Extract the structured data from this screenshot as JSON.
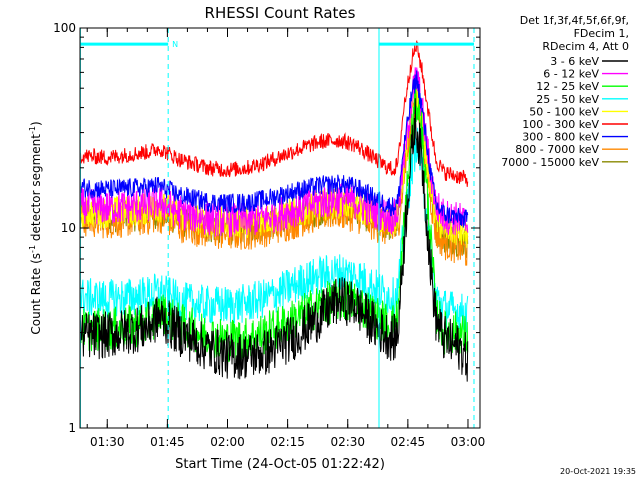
{
  "chart_data": {
    "type": "line",
    "title": "RHESSI Count Rates",
    "xlabel": "Start Time (24-Oct-05 01:22:42)",
    "ylabel_main": "Count Rate (s",
    "ylabel_sup1": "-1",
    "ylabel_mid": " detector segment",
    "ylabel_sup2": "-1",
    "ylabel_end": ")",
    "yscale": "log",
    "ylim": [
      1,
      100
    ],
    "xlim_minutes": [
      83.2,
      183.0
    ],
    "x_ticks": [
      {
        "label": "01:30",
        "minutes": 90
      },
      {
        "label": "01:45",
        "minutes": 105
      },
      {
        "label": "02:00",
        "minutes": 120
      },
      {
        "label": "02:15",
        "minutes": 135
      },
      {
        "label": "02:30",
        "minutes": 150
      },
      {
        "label": "02:45",
        "minutes": 165
      },
      {
        "label": "03:00",
        "minutes": 180
      }
    ],
    "y_ticks": [
      {
        "label": "1",
        "value": 1
      },
      {
        "label": "10",
        "value": 10
      },
      {
        "label": "100",
        "value": 100
      }
    ],
    "legend_header": [
      "Det 1f,3f,4f,5f,6f,9f,",
      "FDecim 1,",
      "RDecim 4, Att 0"
    ],
    "series": [
      {
        "name": "3 - 6 keV",
        "color": "#000000"
      },
      {
        "name": "6 - 12 keV",
        "color": "#ff00ff"
      },
      {
        "name": "12 - 25 keV",
        "color": "#00ff00"
      },
      {
        "name": "25 - 50 keV",
        "color": "#00ffff"
      },
      {
        "name": "50 - 100 keV",
        "color": "#ffff00"
      },
      {
        "name": "100 - 300 keV",
        "color": "#ff0000"
      },
      {
        "name": "300 - 800 keV",
        "color": "#0000ff"
      },
      {
        "name": "800 - 7000 keV",
        "color": "#ff8800"
      },
      {
        "name": "7000 - 15000 keV",
        "color": "#888800"
      }
    ],
    "profiles": [
      [
        [
          83.2,
          2.9
        ],
        [
          90,
          2.9
        ],
        [
          100,
          3.2
        ],
        [
          103,
          3.6
        ],
        [
          108,
          3.0
        ],
        [
          115,
          2.5
        ],
        [
          120,
          2.3
        ],
        [
          125,
          2.3
        ],
        [
          130,
          2.4
        ],
        [
          137,
          2.9
        ],
        [
          143,
          3.6
        ],
        [
          148,
          4.4
        ],
        [
          152,
          4.1
        ],
        [
          157,
          3.2
        ],
        [
          160,
          2.9
        ],
        [
          161.5,
          2.8
        ],
        [
          162.5,
          3.0
        ],
        [
          163.5,
          6
        ],
        [
          165,
          15
        ],
        [
          166.8,
          35
        ],
        [
          168.5,
          22
        ],
        [
          170.5,
          7
        ],
        [
          172,
          3.5
        ],
        [
          174,
          2.8
        ],
        [
          178,
          2.5
        ],
        [
          180,
          2.2
        ]
      ],
      [
        [
          83.2,
          13
        ],
        [
          90,
          12.6
        ],
        [
          100,
          13
        ],
        [
          103,
          13.5
        ],
        [
          108,
          12
        ],
        [
          115,
          11.2
        ],
        [
          120,
          11
        ],
        [
          125,
          11
        ],
        [
          130,
          11.4
        ],
        [
          137,
          12.4
        ],
        [
          143,
          13.5
        ],
        [
          148,
          14
        ],
        [
          152,
          13.5
        ],
        [
          157,
          12
        ],
        [
          160,
          11.5
        ],
        [
          161.5,
          11.3
        ],
        [
          162.5,
          12
        ],
        [
          164,
          22
        ],
        [
          166,
          45
        ],
        [
          167.2,
          58
        ],
        [
          168.5,
          40
        ],
        [
          170.5,
          20
        ],
        [
          172,
          13
        ],
        [
          174,
          11.5
        ],
        [
          178,
          11
        ],
        [
          180,
          10.5
        ]
      ],
      [
        [
          83.2,
          3.1
        ],
        [
          90,
          3.1
        ],
        [
          100,
          3.3
        ],
        [
          103,
          3.8
        ],
        [
          108,
          3.3
        ],
        [
          115,
          2.9
        ],
        [
          120,
          2.75
        ],
        [
          125,
          2.8
        ],
        [
          130,
          3.0
        ],
        [
          137,
          3.5
        ],
        [
          143,
          4.1
        ],
        [
          148,
          4.4
        ],
        [
          152,
          4.3
        ],
        [
          157,
          3.6
        ],
        [
          160,
          3.3
        ],
        [
          161.5,
          3.3
        ],
        [
          162.5,
          3.6
        ],
        [
          164,
          10
        ],
        [
          166,
          30
        ],
        [
          167.2,
          44
        ],
        [
          168.5,
          30
        ],
        [
          170.5,
          10
        ],
        [
          172,
          3.8
        ],
        [
          174,
          3.0
        ],
        [
          178,
          3.0
        ],
        [
          180,
          2.8
        ]
      ],
      [
        [
          83.2,
          4.5
        ],
        [
          90,
          4.4
        ],
        [
          100,
          4.6
        ],
        [
          103,
          4.8
        ],
        [
          108,
          4.3
        ],
        [
          115,
          4.1
        ],
        [
          120,
          4.1
        ],
        [
          125,
          4.2
        ],
        [
          130,
          4.5
        ],
        [
          137,
          5.2
        ],
        [
          143,
          5.8
        ],
        [
          148,
          6.0
        ],
        [
          152,
          5.8
        ],
        [
          157,
          5.0
        ],
        [
          160,
          4.6
        ],
        [
          161.5,
          4.5
        ],
        [
          162.5,
          4.8
        ],
        [
          164,
          10
        ],
        [
          166,
          20
        ],
        [
          167.2,
          27
        ],
        [
          168.5,
          20
        ],
        [
          170.5,
          8
        ],
        [
          172,
          4.5
        ],
        [
          174,
          4.0
        ],
        [
          178,
          3.8
        ],
        [
          180,
          3.7
        ]
      ],
      [
        [
          83.2,
          12
        ],
        [
          90,
          12
        ],
        [
          100,
          12.4
        ],
        [
          103,
          12.8
        ],
        [
          108,
          11.6
        ],
        [
          115,
          10.8
        ],
        [
          120,
          10.6
        ],
        [
          125,
          10.7
        ],
        [
          130,
          11.1
        ],
        [
          137,
          12
        ],
        [
          143,
          13
        ],
        [
          148,
          13.4
        ],
        [
          152,
          13
        ],
        [
          157,
          11.6
        ],
        [
          160,
          11
        ],
        [
          161.5,
          10.9
        ],
        [
          162.5,
          11.5
        ],
        [
          164,
          20
        ],
        [
          166,
          38
        ],
        [
          167.2,
          48
        ],
        [
          168.5,
          34
        ],
        [
          170.5,
          17
        ],
        [
          172,
          11
        ],
        [
          174,
          10
        ],
        [
          178,
          9.5
        ],
        [
          180,
          9.3
        ]
      ],
      [
        [
          83.2,
          23
        ],
        [
          90,
          22.5
        ],
        [
          100,
          24
        ],
        [
          103,
          25
        ],
        [
          108,
          22
        ],
        [
          115,
          20
        ],
        [
          120,
          19.5
        ],
        [
          125,
          20
        ],
        [
          130,
          21.5
        ],
        [
          137,
          24.5
        ],
        [
          143,
          27
        ],
        [
          148,
          27.5
        ],
        [
          152,
          26
        ],
        [
          157,
          22
        ],
        [
          160,
          20
        ],
        [
          161.5,
          19.6
        ],
        [
          162.5,
          21
        ],
        [
          164,
          40
        ],
        [
          166,
          70
        ],
        [
          167.2,
          82
        ],
        [
          168.5,
          62
        ],
        [
          170.5,
          34
        ],
        [
          172,
          22
        ],
        [
          174,
          19
        ],
        [
          178,
          18
        ],
        [
          180,
          17.5
        ]
      ],
      [
        [
          83.2,
          16
        ],
        [
          90,
          15.6
        ],
        [
          100,
          16
        ],
        [
          103,
          16.3
        ],
        [
          108,
          14.6
        ],
        [
          115,
          13.5
        ],
        [
          120,
          13.3
        ],
        [
          125,
          13.4
        ],
        [
          130,
          14
        ],
        [
          137,
          15.3
        ],
        [
          143,
          16.3
        ],
        [
          148,
          16.6
        ],
        [
          152,
          16
        ],
        [
          157,
          14
        ],
        [
          160,
          13
        ],
        [
          161.5,
          12.8
        ],
        [
          162.5,
          13.5
        ],
        [
          164,
          25
        ],
        [
          166,
          47
        ],
        [
          167.2,
          56
        ],
        [
          168.5,
          40
        ],
        [
          170.5,
          20
        ],
        [
          172,
          13
        ],
        [
          174,
          11.8
        ],
        [
          178,
          11.2
        ],
        [
          180,
          11
        ]
      ],
      [
        [
          83.2,
          11
        ],
        [
          90,
          10.8
        ],
        [
          100,
          11.2
        ],
        [
          103,
          11.6
        ],
        [
          108,
          10.4
        ],
        [
          115,
          9.6
        ],
        [
          120,
          9.4
        ],
        [
          125,
          9.5
        ],
        [
          130,
          9.9
        ],
        [
          137,
          10.8
        ],
        [
          143,
          11.8
        ],
        [
          148,
          12.1
        ],
        [
          152,
          11.6
        ],
        [
          157,
          10.4
        ],
        [
          160,
          9.8
        ],
        [
          161.5,
          9.7
        ],
        [
          162.5,
          10.2
        ],
        [
          164,
          18
        ],
        [
          166,
          34
        ],
        [
          167.2,
          44
        ],
        [
          168.5,
          31
        ],
        [
          170.5,
          15
        ],
        [
          172,
          9.5
        ],
        [
          174,
          8.5
        ],
        [
          178,
          8
        ],
        [
          180,
          7.5
        ]
      ],
      [
        [
          83.2,
          11.5
        ],
        [
          90,
          11.3
        ],
        [
          100,
          11.6
        ],
        [
          103,
          12
        ],
        [
          108,
          10.9
        ],
        [
          115,
          10.1
        ],
        [
          120,
          9.9
        ],
        [
          125,
          10
        ],
        [
          130,
          10.4
        ],
        [
          137,
          11.3
        ],
        [
          143,
          12.3
        ],
        [
          148,
          12.6
        ],
        [
          152,
          12.2
        ],
        [
          157,
          10.9
        ],
        [
          160,
          10.3
        ],
        [
          161.5,
          10.2
        ],
        [
          162.5,
          10.8
        ],
        [
          164,
          19
        ],
        [
          166,
          35
        ],
        [
          167.2,
          45
        ],
        [
          168.5,
          32
        ],
        [
          170.5,
          16
        ],
        [
          172,
          10
        ],
        [
          174,
          9
        ],
        [
          178,
          8.6
        ],
        [
          180,
          8.4
        ]
      ]
    ],
    "noise": [
      0.12,
      0.09,
      0.11,
      0.1,
      0.08,
      0.04,
      0.05,
      0.09,
      0.08
    ],
    "attenuator_bars": [
      [
        83.2,
        105.2
      ],
      [
        157.8,
        181.5
      ]
    ],
    "attenuator_dashes": [
      [
        105.2,
        0.655
      ],
      [
        181.5,
        0.655
      ]
    ],
    "attenuator_verticals": [
      83.3,
      157.8
    ],
    "attenuator_label": "N",
    "bar_color": "#00ffff"
  },
  "footer": {
    "timestamp": "20-Oct-2021 19:35"
  }
}
